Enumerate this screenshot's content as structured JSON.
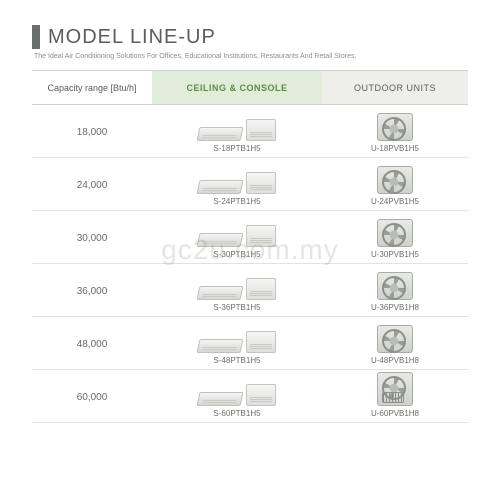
{
  "header": {
    "title": "MODEL LINE-UP",
    "subtitle": "The Ideal Air Conditioning Solutions For Offices, Educational Institutions, Restaurants And Retail Stores."
  },
  "columns": {
    "capacity": "Capacity range [Btu/h]",
    "indoor": "CEILING & CONSOLE",
    "outdoor": "OUTDOOR UNITS"
  },
  "rows": [
    {
      "capacity": "18,000",
      "indoor_model": "S-18PTB1H5",
      "outdoor_model": "U-18PVB1H5",
      "outdoor_tall": false
    },
    {
      "capacity": "24,000",
      "indoor_model": "S-24PTB1H5",
      "outdoor_model": "U-24PVB1H5",
      "outdoor_tall": false
    },
    {
      "capacity": "30,000",
      "indoor_model": "S-30PTB1H5",
      "outdoor_model": "U-30PVB1H5",
      "outdoor_tall": false
    },
    {
      "capacity": "36,000",
      "indoor_model": "S-36PTB1H5",
      "outdoor_model": "U-36PVB1H8",
      "outdoor_tall": false
    },
    {
      "capacity": "48,000",
      "indoor_model": "S-48PTB1H5",
      "outdoor_model": "U-48PVB1H8",
      "outdoor_tall": false
    },
    {
      "capacity": "60,000",
      "indoor_model": "S-60PTB1H5",
      "outdoor_model": "U-60PVB1H8",
      "outdoor_tall": true
    }
  ],
  "watermark": "gc2u.com.my"
}
